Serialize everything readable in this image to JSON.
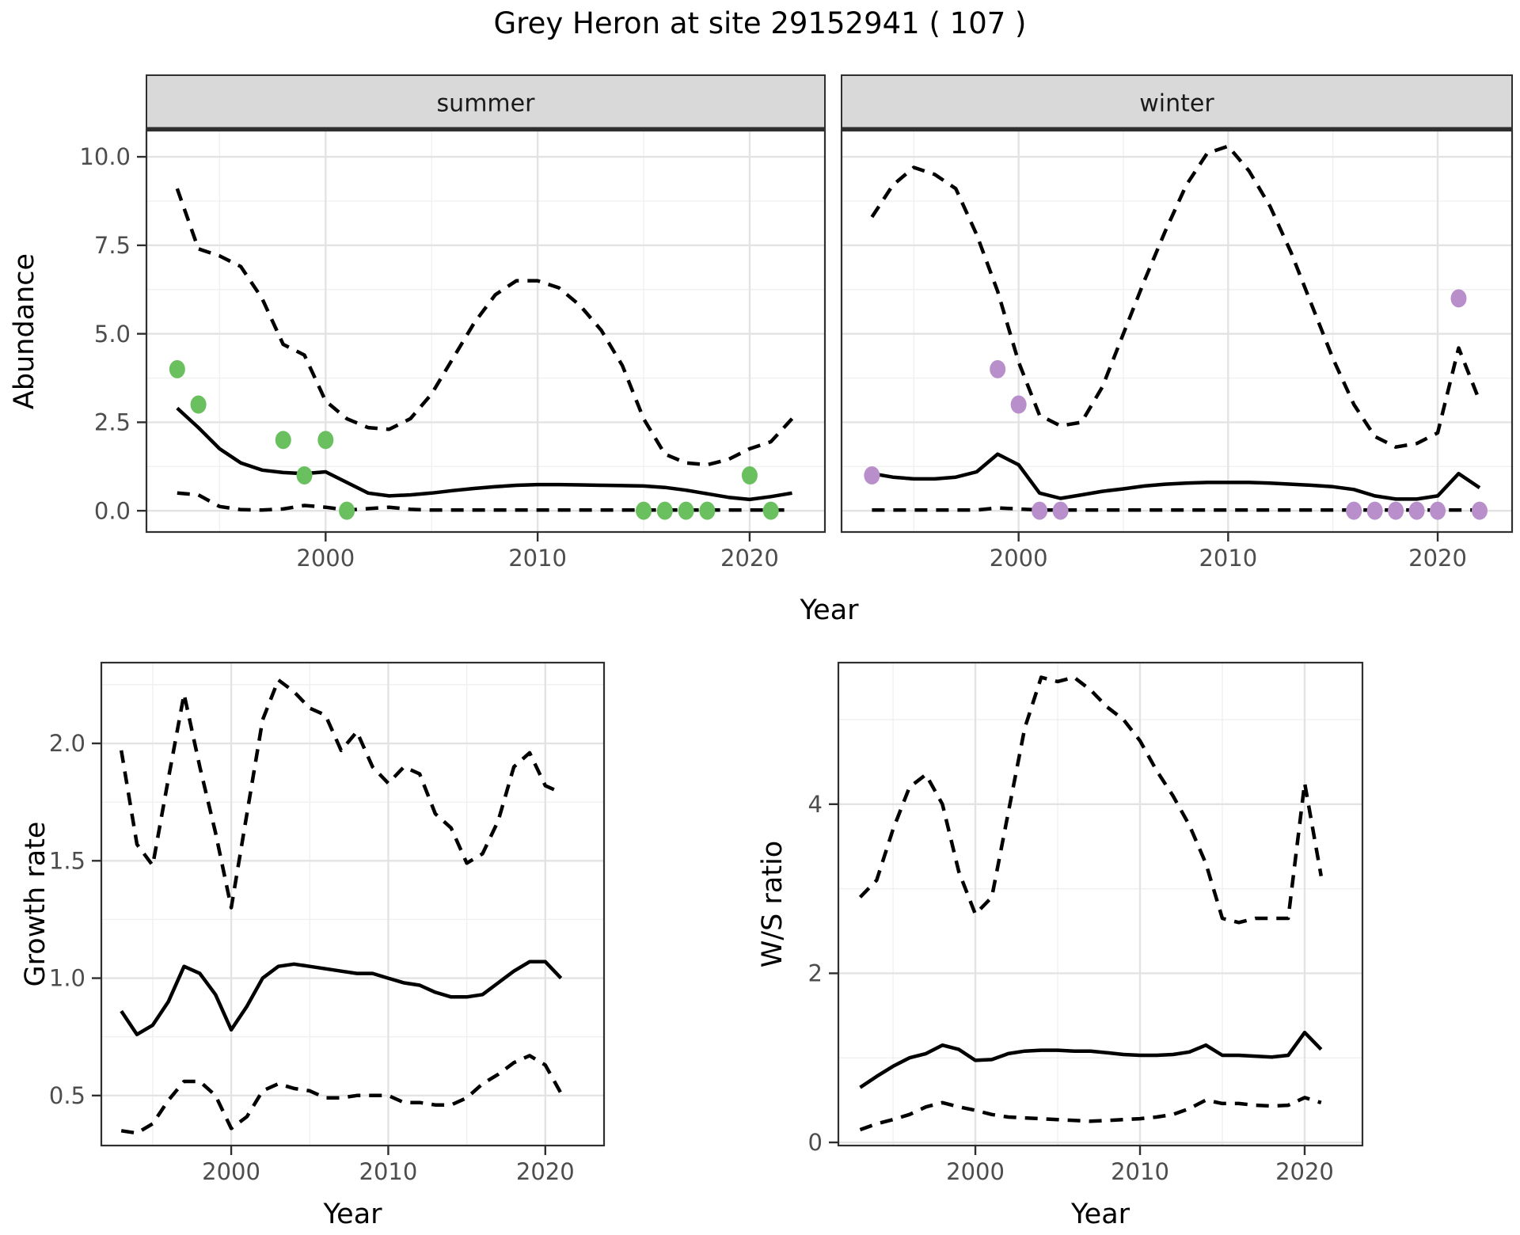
{
  "title": "Grey Heron at site 29152941 ( 107 )",
  "colors": {
    "summer_point": "#6abf5e",
    "winter_point": "#b88fcb",
    "line": "#000000",
    "strip_bg": "#d9d9d9",
    "strip_border": "#2f2f2f",
    "panel_border": "#2f2f2f",
    "grid_major": "#e3e3e3",
    "grid_minor": "#f0f0f0",
    "tick_label": "#4d4d4d",
    "axis_title": "#000000"
  },
  "chart_data": [
    {
      "id": "abundance",
      "type": "line",
      "ylabel": "Abundance",
      "xlabel": "Year",
      "xlim": [
        1991.55,
        2023.55
      ],
      "ylim": [
        -0.6,
        10.74
      ],
      "x_ticks": [
        2000,
        2010,
        2020
      ],
      "x_tick_labels": [
        "2000",
        "2010",
        "2020"
      ],
      "x_minor": [
        1995,
        2005,
        2015
      ],
      "y_ticks": [
        0,
        2.5,
        5,
        7.5,
        10
      ],
      "y_tick_labels": [
        "0.0",
        "2.5",
        "5.0",
        "7.5",
        "10.0"
      ],
      "y_minor": [
        1.25,
        3.75,
        6.25,
        8.75
      ],
      "years": [
        1993,
        1994,
        1995,
        1996,
        1997,
        1998,
        1999,
        2000,
        2001,
        2002,
        2003,
        2004,
        2005,
        2006,
        2007,
        2008,
        2009,
        2010,
        2011,
        2012,
        2013,
        2014,
        2015,
        2016,
        2017,
        2018,
        2019,
        2020,
        2021,
        2022
      ],
      "facets": [
        {
          "label": "summer",
          "point_color_key": "summer_point",
          "upper_ci": [
            9.1,
            7.4,
            7.2,
            6.9,
            6.0,
            4.7,
            4.4,
            3.1,
            2.6,
            2.35,
            2.3,
            2.6,
            3.3,
            4.3,
            5.3,
            6.1,
            6.5,
            6.5,
            6.3,
            5.8,
            5.1,
            4.1,
            2.6,
            1.6,
            1.35,
            1.3,
            1.45,
            1.75,
            1.95,
            2.6
          ],
          "median": [
            2.9,
            2.35,
            1.75,
            1.35,
            1.15,
            1.08,
            1.05,
            1.1,
            0.8,
            0.5,
            0.42,
            0.45,
            0.5,
            0.57,
            0.63,
            0.68,
            0.72,
            0.74,
            0.74,
            0.73,
            0.72,
            0.71,
            0.7,
            0.66,
            0.58,
            0.48,
            0.38,
            0.32,
            0.4,
            0.5
          ],
          "lower_ci": [
            0.5,
            0.45,
            0.12,
            0.03,
            0.02,
            0.05,
            0.15,
            0.1,
            0.02,
            0.06,
            0.1,
            0.04,
            0.02,
            0.02,
            0.02,
            0.02,
            0.02,
            0.02,
            0.02,
            0.02,
            0.02,
            0.02,
            0.02,
            0.02,
            0.02,
            0.02,
            0.02,
            0.02,
            0.02,
            0.02
          ],
          "obs_years": [
            1993,
            1994,
            1998,
            1999,
            2000,
            2001,
            2015,
            2016,
            2017,
            2018,
            2020,
            2021
          ],
          "obs_values": [
            4,
            3,
            2,
            1,
            2,
            0,
            0,
            0,
            0,
            0,
            1,
            0
          ]
        },
        {
          "label": "winter",
          "point_color_key": "winter_point",
          "upper_ci": [
            8.3,
            9.2,
            9.7,
            9.5,
            9.1,
            7.8,
            6.2,
            4.2,
            2.7,
            2.4,
            2.5,
            3.5,
            5.0,
            6.5,
            7.9,
            9.2,
            10.1,
            10.3,
            9.6,
            8.6,
            7.3,
            5.8,
            4.3,
            3.0,
            2.1,
            1.8,
            1.9,
            2.2,
            4.6,
            3.1
          ],
          "median": [
            1.05,
            0.95,
            0.9,
            0.9,
            0.95,
            1.1,
            1.6,
            1.3,
            0.5,
            0.35,
            0.45,
            0.55,
            0.62,
            0.7,
            0.75,
            0.78,
            0.8,
            0.8,
            0.8,
            0.78,
            0.75,
            0.72,
            0.68,
            0.6,
            0.42,
            0.33,
            0.33,
            0.42,
            1.05,
            0.65
          ],
          "lower_ci": [
            0.02,
            0.02,
            0.02,
            0.02,
            0.02,
            0.02,
            0.08,
            0.05,
            0.02,
            0.02,
            0.02,
            0.02,
            0.02,
            0.02,
            0.02,
            0.02,
            0.02,
            0.02,
            0.02,
            0.02,
            0.02,
            0.02,
            0.02,
            0.02,
            0.02,
            0.02,
            0.02,
            0.02,
            0.02,
            0.02
          ],
          "obs_years": [
            1993,
            1999,
            2000,
            2001,
            2002,
            2016,
            2017,
            2018,
            2019,
            2020,
            2021,
            2022
          ],
          "obs_values": [
            1,
            4,
            3,
            0,
            0,
            0,
            0,
            0,
            0,
            0,
            6,
            0
          ]
        }
      ]
    },
    {
      "id": "growth_rate",
      "type": "line",
      "ylabel": "Growth rate",
      "xlabel": "Year",
      "xlim": [
        1991.73,
        2023.74
      ],
      "ylim": [
        0.287,
        2.344
      ],
      "x_ticks": [
        2000,
        2010,
        2020
      ],
      "x_tick_labels": [
        "2000",
        "2010",
        "2020"
      ],
      "x_minor": [
        1995,
        2005,
        2015
      ],
      "y_ticks": [
        0.5,
        1.0,
        1.5,
        2.0
      ],
      "y_tick_labels": [
        "0.5",
        "1.0",
        "1.5",
        "2.0"
      ],
      "y_minor": [
        0.75,
        1.25,
        1.75,
        2.25
      ],
      "years": [
        1993,
        1994,
        1995,
        1996,
        1997,
        1998,
        1999,
        2000,
        2001,
        2002,
        2003,
        2004,
        2005,
        2006,
        2007,
        2008,
        2009,
        2010,
        2011,
        2012,
        2013,
        2014,
        2015,
        2016,
        2017,
        2018,
        2019,
        2020,
        2021
      ],
      "upper_ci": [
        1.97,
        1.57,
        1.48,
        1.85,
        2.21,
        1.9,
        1.62,
        1.3,
        1.7,
        2.1,
        2.27,
        2.22,
        2.15,
        2.12,
        1.97,
        2.05,
        1.9,
        1.83,
        1.9,
        1.87,
        1.7,
        1.64,
        1.49,
        1.53,
        1.67,
        1.9,
        1.96,
        1.82,
        1.79
      ],
      "median": [
        0.86,
        0.76,
        0.8,
        0.9,
        1.05,
        1.02,
        0.93,
        0.78,
        0.88,
        1.0,
        1.05,
        1.06,
        1.05,
        1.04,
        1.03,
        1.02,
        1.02,
        1.0,
        0.98,
        0.97,
        0.94,
        0.92,
        0.92,
        0.93,
        0.98,
        1.03,
        1.07,
        1.07,
        1.0
      ],
      "lower_ci": [
        0.35,
        0.34,
        0.38,
        0.48,
        0.56,
        0.56,
        0.5,
        0.36,
        0.41,
        0.52,
        0.55,
        0.53,
        0.52,
        0.49,
        0.49,
        0.5,
        0.5,
        0.5,
        0.47,
        0.47,
        0.46,
        0.46,
        0.49,
        0.55,
        0.59,
        0.64,
        0.67,
        0.63,
        0.51
      ]
    },
    {
      "id": "ws_ratio",
      "type": "line",
      "ylabel": "W/S ratio",
      "xlabel": "Year",
      "xlim": [
        1991.68,
        2023.51
      ],
      "ylim": [
        -0.037,
        5.674
      ],
      "x_ticks": [
        2000,
        2010,
        2020
      ],
      "x_tick_labels": [
        "2000",
        "2010",
        "2020"
      ],
      "x_minor": [
        1995,
        2005,
        2015
      ],
      "y_ticks": [
        0,
        2,
        4
      ],
      "y_tick_labels": [
        "0",
        "2",
        "4"
      ],
      "y_minor": [
        1,
        3,
        5
      ],
      "years": [
        1993,
        1994,
        1995,
        1996,
        1997,
        1998,
        1999,
        2000,
        2001,
        2002,
        2003,
        2004,
        2005,
        2006,
        2007,
        2008,
        2009,
        2010,
        2011,
        2012,
        2013,
        2014,
        2015,
        2016,
        2017,
        2018,
        2019,
        2020,
        2021
      ],
      "upper_ci": [
        2.9,
        3.1,
        3.7,
        4.2,
        4.35,
        4.0,
        3.2,
        2.7,
        2.9,
        3.9,
        4.9,
        5.5,
        5.45,
        5.5,
        5.35,
        5.15,
        5.0,
        4.75,
        4.4,
        4.1,
        3.75,
        3.3,
        2.65,
        2.6,
        2.65,
        2.65,
        2.65,
        4.25,
        3.15
      ],
      "median": [
        0.65,
        0.78,
        0.9,
        1.0,
        1.05,
        1.15,
        1.1,
        0.97,
        0.98,
        1.05,
        1.08,
        1.09,
        1.09,
        1.08,
        1.08,
        1.06,
        1.04,
        1.03,
        1.03,
        1.04,
        1.07,
        1.15,
        1.03,
        1.03,
        1.02,
        1.01,
        1.03,
        1.3,
        1.1
      ],
      "lower_ci": [
        0.15,
        0.22,
        0.27,
        0.33,
        0.42,
        0.47,
        0.42,
        0.38,
        0.33,
        0.3,
        0.29,
        0.28,
        0.27,
        0.26,
        0.25,
        0.26,
        0.27,
        0.28,
        0.3,
        0.33,
        0.4,
        0.5,
        0.46,
        0.46,
        0.44,
        0.43,
        0.44,
        0.53,
        0.47
      ]
    }
  ]
}
